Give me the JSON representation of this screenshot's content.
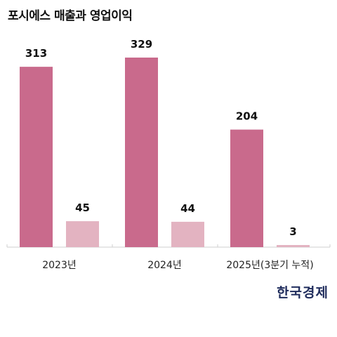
{
  "title": "포시에스 매출과 영업이익",
  "logo": "한국경제",
  "chart_data": {
    "type": "bar",
    "categories": [
      "2023년",
      "2024년",
      "2025년(3분기 누적)"
    ],
    "series": [
      {
        "values": [
          313,
          329,
          204
        ],
        "color": "#c96a8c"
      },
      {
        "values": [
          45,
          44,
          3
        ],
        "color": "#e3b3c1"
      }
    ],
    "ylim": [
      0,
      329
    ],
    "grid": false,
    "legend": "none"
  }
}
